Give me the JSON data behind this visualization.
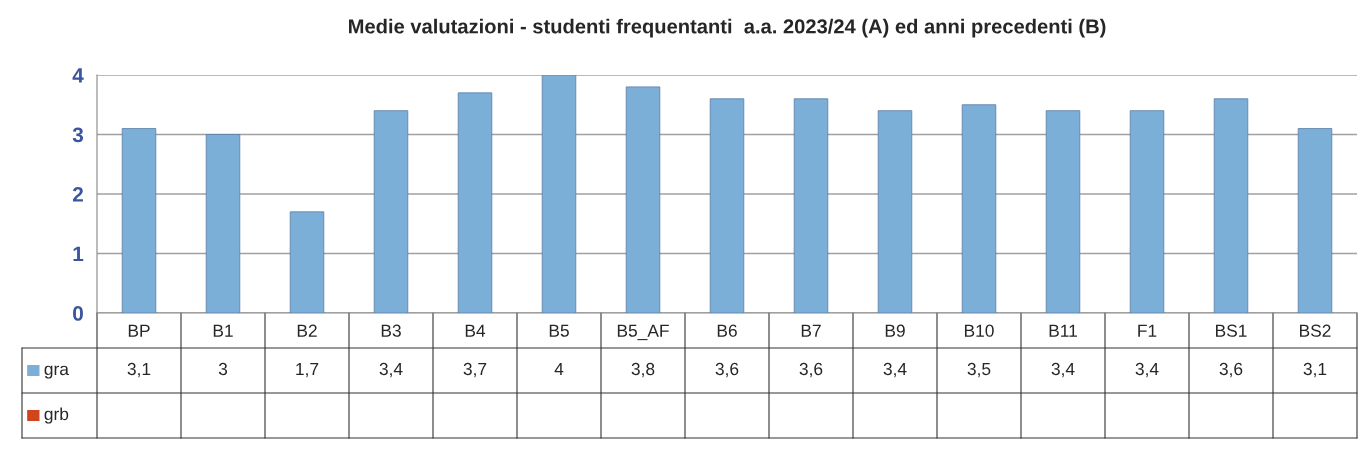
{
  "chart_data": {
    "type": "bar",
    "title": "Medie valutazioni - studenti frequentanti  a.a. 2023/24 (A) ed anni precedenti (B)",
    "categories": [
      "BP",
      "B1",
      "B2",
      "B3",
      "B4",
      "B5",
      "B5_AF",
      "B6",
      "B7",
      "B9",
      "B10",
      "B11",
      "F1",
      "BS1",
      "BS2"
    ],
    "series": [
      {
        "name": "gra",
        "color": "#7bafd8",
        "values": [
          3.1,
          3,
          1.7,
          3.4,
          3.7,
          4,
          3.8,
          3.6,
          3.6,
          3.4,
          3.5,
          3.4,
          3.4,
          3.6,
          3.1
        ],
        "value_labels": [
          "3,1",
          "3",
          "1,7",
          "3,4",
          "3,7",
          "4",
          "3,8",
          "3,6",
          "3,6",
          "3,4",
          "3,5",
          "3,4",
          "3,4",
          "3,6",
          "3,1"
        ]
      },
      {
        "name": "grb",
        "color": "#d0451b",
        "values": [
          null,
          null,
          null,
          null,
          null,
          null,
          null,
          null,
          null,
          null,
          null,
          null,
          null,
          null,
          null
        ],
        "value_labels": [
          null,
          null,
          null,
          null,
          null,
          null,
          null,
          null,
          null,
          null,
          null,
          null,
          null,
          null,
          null
        ]
      }
    ],
    "ylim": [
      0,
      4
    ],
    "yticks": [
      0,
      1,
      2,
      3,
      4
    ],
    "grid": "y",
    "legend": "bottom"
  }
}
